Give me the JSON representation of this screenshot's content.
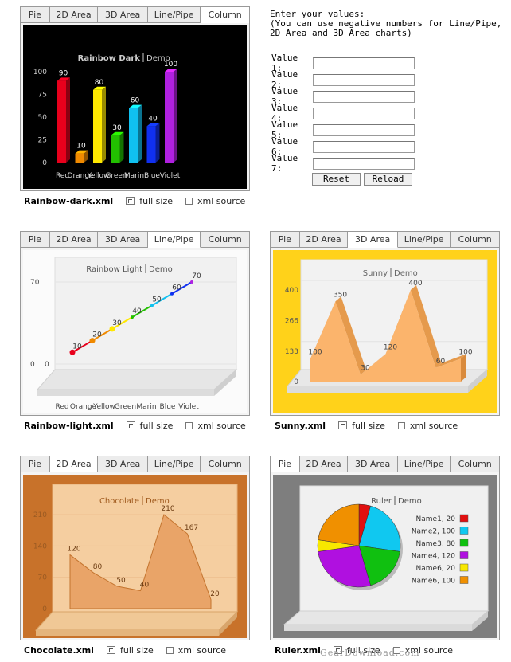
{
  "tabs": [
    "Pie",
    "2D Area",
    "3D Area",
    "Line/Pipe",
    "Column"
  ],
  "links": {
    "full": "full size",
    "xml": "xml source"
  },
  "form": {
    "intro": "Enter your values:\n(You can use negative numbers for Line/Pipe,\n2D Area and 3D Area charts)",
    "labels": [
      "Value 1:",
      "Value 2:",
      "Value 3:",
      "Value 4:",
      "Value 5:",
      "Value 6:",
      "Value 7:"
    ],
    "values": [
      "",
      "",
      "",
      "",
      "",
      "",
      ""
    ],
    "reset_label": "Reset",
    "reload_label": "Reload"
  },
  "watermark": "GearDownload.com",
  "panels": [
    {
      "file": "Rainbow-dark.xml",
      "active_tab": "Column"
    },
    {
      "file": "Rainbow-light.xml",
      "active_tab": "Line/Pipe"
    },
    {
      "file": "Sunny.xml",
      "active_tab": "3D Area"
    },
    {
      "file": "Chocolate.xml",
      "active_tab": "2D Area"
    },
    {
      "file": "Ruler.xml",
      "active_tab": "Pie"
    }
  ],
  "chart_data": [
    {
      "type": "bar",
      "title": "Rainbow Dark",
      "subtitle": "Demo",
      "categories": [
        "Red",
        "Orange",
        "Yellow",
        "Green",
        "Marin",
        "Blue",
        "Violet"
      ],
      "values": [
        90,
        10,
        80,
        30,
        60,
        40,
        100
      ],
      "yticks": [
        "0",
        "25",
        "50",
        "75",
        "100"
      ],
      "ylim": [
        0,
        100
      ],
      "colors": [
        "#e8001c",
        "#f08a00",
        "#ffe800",
        "#22c000",
        "#10c0f0",
        "#1030f0",
        "#b020e0"
      ]
    },
    {
      "type": "line",
      "title": "Rainbow Light",
      "subtitle": "Demo",
      "categories": [
        "Red",
        "Orange",
        "Yellow",
        "Green",
        "Marin",
        "Blue",
        "Violet"
      ],
      "values": [
        10,
        20,
        30,
        40,
        50,
        60,
        70
      ],
      "yticks": [
        "0",
        "70"
      ],
      "ylim": [
        0,
        70
      ]
    },
    {
      "type": "area",
      "title": "Sunny",
      "subtitle": "Demo",
      "x": [
        1,
        2,
        3,
        4,
        5,
        6,
        7
      ],
      "values": [
        100,
        350,
        30,
        120,
        400,
        60,
        100
      ],
      "yticks": [
        "0",
        "133",
        "266",
        "400"
      ],
      "ylim": [
        0,
        400
      ]
    },
    {
      "type": "area",
      "title": "Chocolate",
      "subtitle": "Demo",
      "x": [
        1,
        2,
        3,
        4,
        5,
        6,
        7
      ],
      "values": [
        120,
        80,
        50,
        40,
        210,
        167,
        20
      ],
      "yticks": [
        "0",
        "70",
        "140",
        "210"
      ],
      "ylim": [
        0,
        210
      ]
    },
    {
      "type": "pie",
      "title": "Ruler",
      "subtitle": "Demo",
      "labels": [
        "Name1, 20",
        "Name2, 100",
        "Name3, 80",
        "Name4, 120",
        "Name6, 20",
        "Name6, 100"
      ],
      "values": [
        20,
        100,
        80,
        120,
        20,
        100
      ],
      "colors": [
        "#e01010",
        "#10c8f0",
        "#10c010",
        "#b010e0",
        "#f8e800",
        "#f09000"
      ]
    }
  ]
}
